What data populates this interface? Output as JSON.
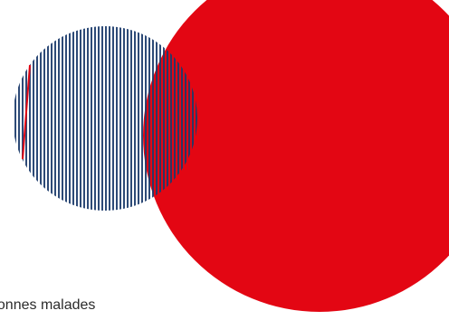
{
  "caption": {
    "text": "Personnes malades"
  },
  "colors": {
    "background": "#ffffff",
    "red_disc": "#e30613",
    "striped_disc": "#1b3a6b",
    "accent_stripe": "#e30613",
    "text": "#2b2b2b"
  }
}
